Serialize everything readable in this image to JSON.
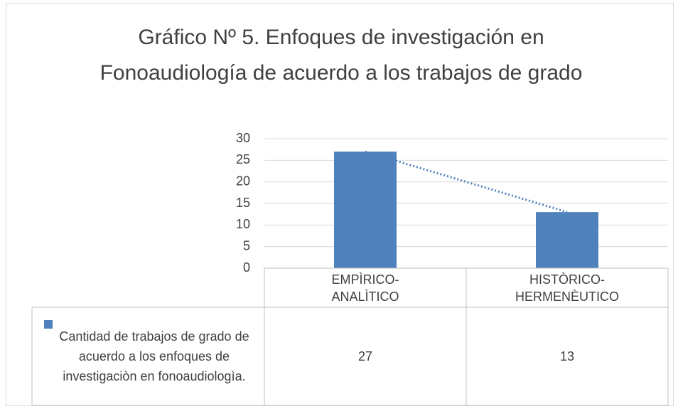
{
  "chart_data": {
    "type": "bar",
    "title": "Gráfico Nº 5. Enfoques de investigación en Fonoaudiología de acuerdo a los trabajos de grado",
    "categories": [
      "EMPÌRICO-ANALÌTICO",
      "HISTÒRICO-HERMENÈUTICO"
    ],
    "series": [
      {
        "name": "Cantidad de trabajos de grado de acuerdo a los enfoques de investigaciòn en fonoaudiologìa.",
        "color": "#4f81bd",
        "values": [
          27,
          13
        ]
      }
    ],
    "ylim": [
      0,
      30
    ],
    "yticks": [
      0,
      5,
      10,
      15,
      20,
      25,
      30
    ],
    "grid": true,
    "trendline": true,
    "data_table": true
  }
}
